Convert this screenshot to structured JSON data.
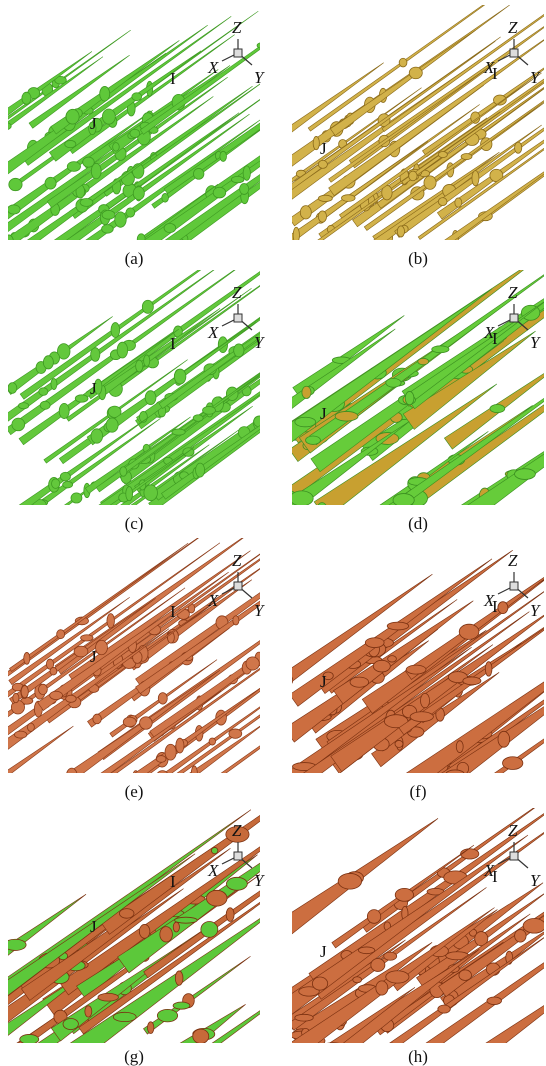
{
  "panels": [
    {
      "caption": "(a)",
      "label_i": "I",
      "label_j": "J",
      "axis_x": "X",
      "axis_y": "Y",
      "axis_z": "Z"
    },
    {
      "caption": "(b)",
      "label_i": "I",
      "label_j": "J",
      "axis_x": "X",
      "axis_y": "Y",
      "axis_z": "Z"
    },
    {
      "caption": "(c)",
      "label_i": "I",
      "label_j": "J",
      "axis_x": "X",
      "axis_y": "Y",
      "axis_z": "Z"
    },
    {
      "caption": "(d)",
      "label_i": "I",
      "label_j": "J",
      "axis_x": "X",
      "axis_y": "Y",
      "axis_z": "Z"
    },
    {
      "caption": "(e)",
      "label_i": "I",
      "label_j": "J",
      "axis_x": "X",
      "axis_y": "Y",
      "axis_z": "Z"
    },
    {
      "caption": "(f)",
      "label_i": "I",
      "label_j": "J",
      "axis_x": "X",
      "axis_y": "Y",
      "axis_z": "Z"
    },
    {
      "caption": "(g)",
      "label_i": "I",
      "label_j": "J",
      "axis_x": "X",
      "axis_y": "Y",
      "axis_z": "Z"
    },
    {
      "caption": "(h)",
      "label_i": "I",
      "label_j": "J",
      "axis_x": "X",
      "axis_y": "Y",
      "axis_z": "Z"
    }
  ]
}
